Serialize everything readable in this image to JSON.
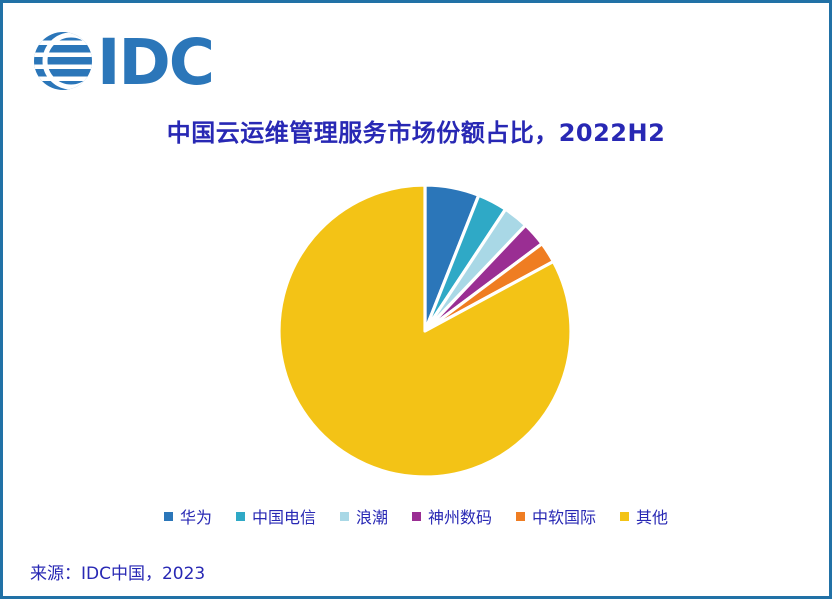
{
  "brand": {
    "logo_text": "IDC",
    "brand_color": "#2B76B9"
  },
  "title": "中国云运维管理服务市场份额占比，2022H2",
  "chart_data": {
    "type": "pie",
    "title": "中国云运维管理服务市场份额占比，2022H2",
    "labels": [
      "华为",
      "中国电信",
      "浪潮",
      "神州数码",
      "中软国际",
      "其他"
    ],
    "values": [
      6.0,
      3.3,
      2.8,
      2.7,
      2.3,
      82.9
    ],
    "values_estimated_from_angles": true,
    "unit": "%",
    "colors": [
      "#2B76B9",
      "#2FA9C6",
      "#A9D8E6",
      "#9A2E93",
      "#EF7D22",
      "#F3C316"
    ],
    "start_angle_deg": -90,
    "direction": "clockwise",
    "slice_border_color": "#FFFFFF",
    "legend_position": "bottom",
    "data_labels": false
  },
  "source": {
    "text": "来源：IDC中国，2023"
  },
  "frame": {
    "border_color": "#2171A6",
    "background": "#FFFFFF",
    "text_color": "#2828B4"
  }
}
